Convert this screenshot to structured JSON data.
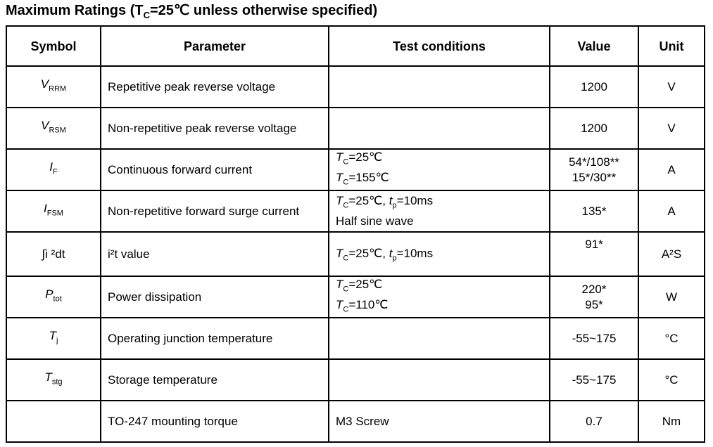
{
  "title": {
    "prefix": "Maximum Ratings (T",
    "sub": "C",
    "suffix": "=25℃ unless otherwise specified)"
  },
  "headers": [
    "Symbol",
    "Parameter",
    "Test conditions",
    "Value",
    "Unit"
  ],
  "rows": [
    {
      "sym_base": "V",
      "sym_sub": "RRM",
      "param": "Repetitive peak reverse voltage",
      "value": "1200",
      "unit": "V"
    },
    {
      "sym_base": "V",
      "sym_sub": "RSM",
      "param": "Non-repetitive peak reverse voltage",
      "value": "1200",
      "unit": "V"
    },
    {
      "sym_base": "I",
      "sym_sub": "F",
      "param": "Continuous forward current",
      "cond1_sub": "C",
      "cond1_rest": "=25℃",
      "cond2_sub": "C",
      "cond2_rest": "=155℃",
      "value1": "54*/108**",
      "value2": "15*/30**",
      "unit": "A"
    },
    {
      "sym_base": "I",
      "sym_sub": "FSM",
      "param": "Non-repetitive forward surge current",
      "cond1_sub": "C",
      "cond1_rest": "=25℃, ",
      "cond1_t": "t",
      "cond1_tsub": "p",
      "cond1_tail": "=10ms",
      "cond2_text": "Half sine wave",
      "value": "135*",
      "unit": "A"
    },
    {
      "sym_text": "∫i ²dt",
      "param": "i²t value",
      "cond1_sub": "C",
      "cond1_rest": "=25℃, ",
      "cond1_t": "t",
      "cond1_tsub": "p",
      "cond1_tail": "=10ms",
      "value": "91*",
      "unit": "A²S"
    },
    {
      "sym_base": "P",
      "sym_sub": "tot",
      "param": "Power dissipation",
      "cond1_sub": "C",
      "cond1_rest": "=25℃",
      "cond2_sub": "C",
      "cond2_rest": "=110℃",
      "value1": "220*",
      "value2": "95*",
      "unit": "W"
    },
    {
      "sym_base": "T",
      "sym_sub": "j",
      "param": "Operating junction temperature",
      "value": "-55~175",
      "unit": "°C"
    },
    {
      "sym_base": "T",
      "sym_sub": "stg",
      "param": "Storage temperature",
      "value": "-55~175",
      "unit": "°C"
    },
    {
      "param": "TO-247 mounting torque",
      "cond_text": "M3 Screw",
      "value": "0.7",
      "unit": "Nm"
    }
  ],
  "cond_T": "T"
}
